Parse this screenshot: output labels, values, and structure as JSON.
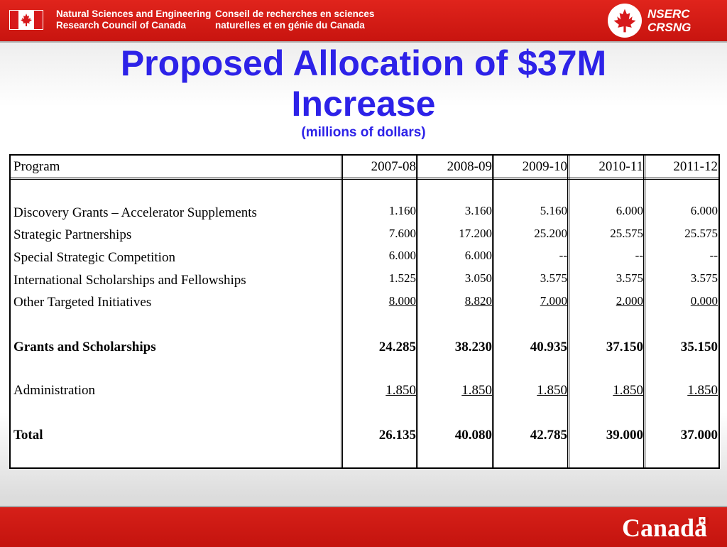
{
  "header": {
    "agency_en_line1": "Natural Sciences and Engineering",
    "agency_en_line2": "Research Council of Canada",
    "agency_fr_line1": "Conseil de recherches en sciences",
    "agency_fr_line2": "naturelles et en génie du Canada",
    "logo_line1": "NSERC",
    "logo_line2": "CRSNG",
    "flag_icon": "canada-flag-icon",
    "logo_icon": "maple-leaf-icon"
  },
  "title": {
    "line1": "Proposed Allocation of $37M",
    "line2": "Increase",
    "subtitle": "(millions of dollars)"
  },
  "table": {
    "header": [
      "Program",
      "2007-08",
      "2008-09",
      "2009-10",
      "2010-11",
      "2011-12"
    ],
    "rows": [
      {
        "label": "Discovery Grants – Accelerator Supplements",
        "values": [
          "1.160",
          "3.160",
          "5.160",
          "6.000",
          "6.000"
        ]
      },
      {
        "label": "Strategic Partnerships",
        "values": [
          "7.600",
          "17.200",
          "25.200",
          "25.575",
          "25.575"
        ]
      },
      {
        "label": "Special Strategic Competition",
        "values": [
          "6.000",
          "6.000",
          "--",
          "--",
          "--"
        ]
      },
      {
        "label": "International Scholarships and Fellowships",
        "values": [
          "1.525",
          "3.050",
          "3.575",
          "3.575",
          "3.575"
        ]
      },
      {
        "label": "Other Targeted Initiatives",
        "values": [
          "8.000",
          "8.820",
          "7.000",
          "2.000",
          "0.000"
        ]
      },
      {
        "label": "Grants and Scholarships",
        "values": [
          "24.285",
          "38.230",
          "40.935",
          "37.150",
          "35.150"
        ]
      },
      {
        "label": "Administration",
        "values": [
          "1.850",
          "1.850",
          "1.850",
          "1.850",
          "1.850"
        ]
      },
      {
        "label": "Total",
        "values": [
          "26.135",
          "40.080",
          "42.785",
          "39.000",
          "37.000"
        ]
      }
    ]
  },
  "footer": {
    "wordmark": "Canadä"
  },
  "colors": {
    "brand_red": "#d21a14",
    "title_blue": "#2d22e8"
  }
}
